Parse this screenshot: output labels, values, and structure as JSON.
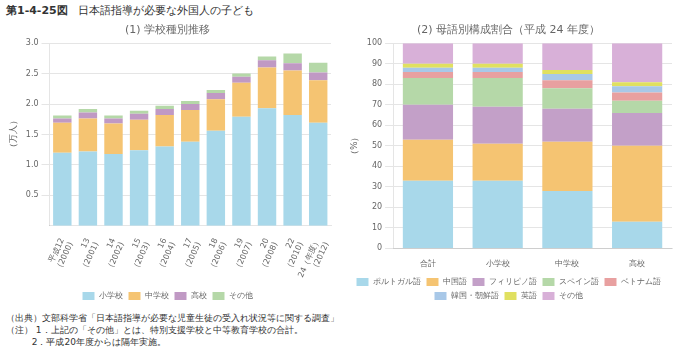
{
  "title": "日本語指導が必要な外国人の子ども",
  "annotations": [
    "第1-4-25図",
    "（出典）文部科学省「日本語指導が必要な児童生徒の受入れ状況等に関する調査」",
    "（注） 1．上記の「その他」とは、特別支援学校と中等教育学校の合計。",
    "         2．平成20年度からは隔年実施。"
  ],
  "chart_data": [
    {
      "type": "bar",
      "stacked": true,
      "title": "(1) 学校種別推移",
      "ylabel": "（万人）",
      "categories": [
        [
          "平成12",
          "(2000)"
        ],
        [
          "13",
          "(2001)"
        ],
        [
          "14",
          "(2002)"
        ],
        [
          "15",
          "(2003)"
        ],
        [
          "16",
          "(2004)"
        ],
        [
          "17",
          "(2005)"
        ],
        [
          "18",
          "(2006)"
        ],
        [
          "19",
          "(2007)"
        ],
        [
          "20",
          "(2008)"
        ],
        [
          "22",
          "(2010)"
        ],
        [
          "24（年度）",
          "(2012)"
        ]
      ],
      "series": [
        {
          "name": "小学校",
          "color": "#a8d8ea",
          "values": [
            1.2,
            1.22,
            1.18,
            1.24,
            1.3,
            1.38,
            1.56,
            1.79,
            1.93,
            1.82,
            1.69
          ]
        },
        {
          "name": "中学校",
          "color": "#f5c472",
          "values": [
            0.49,
            0.54,
            0.5,
            0.5,
            0.52,
            0.52,
            0.52,
            0.56,
            0.67,
            0.73,
            0.7
          ]
        },
        {
          "name": "高校",
          "color": "#c099c4",
          "values": [
            0.07,
            0.1,
            0.08,
            0.1,
            0.1,
            0.1,
            0.1,
            0.1,
            0.12,
            0.12,
            0.13
          ]
        },
        {
          "name": "その他",
          "color": "#b5d8a8",
          "values": [
            0.05,
            0.06,
            0.05,
            0.05,
            0.05,
            0.05,
            0.05,
            0.05,
            0.06,
            0.16,
            0.16
          ]
        }
      ],
      "ylim": [
        0,
        3.0
      ],
      "yticks": [
        0.5,
        {
          "value": 1.0,
          "label": "1.0"
        },
        1.5,
        {
          "value": 2.0,
          "label": "2.0"
        },
        2.5,
        {
          "value": 3.0,
          "label": "3.0"
        }
      ],
      "grid": true,
      "legend": "bottom"
    },
    {
      "type": "bar",
      "stacked": true,
      "title": "(2) 母語別構成割合（平成 24 年度）",
      "ylabel": "（%）",
      "categories": [
        "合計",
        "小学校",
        "中学校",
        "高校"
      ],
      "series": [
        {
          "name": "ポルトガル語",
          "color": "#a8d8ea",
          "values": [
            33,
            33,
            28,
            13
          ]
        },
        {
          "name": "中国語",
          "color": "#f5c472",
          "values": [
            20,
            18,
            24,
            37
          ]
        },
        {
          "name": "フィリピノ語",
          "color": "#c3a0c8",
          "values": [
            17,
            18,
            16,
            16
          ]
        },
        {
          "name": "スペイン語",
          "color": "#b5d8a8",
          "values": [
            13,
            14,
            10,
            6
          ]
        },
        {
          "name": "ベトナム語",
          "color": "#e8a0a0",
          "values": [
            3,
            3,
            4,
            4
          ]
        },
        {
          "name": "韓国・朝鮮語",
          "color": "#a8c8e8",
          "values": [
            2,
            2,
            3,
            3
          ]
        },
        {
          "name": "英語",
          "color": "#e0e060",
          "values": [
            2,
            2,
            2,
            2
          ]
        },
        {
          "name": "その他",
          "color": "#d8b0d8",
          "values": [
            10,
            10,
            13,
            19
          ]
        }
      ],
      "ylim": [
        0,
        100
      ],
      "yticks": [
        0,
        10,
        20,
        30,
        40,
        50,
        60,
        70,
        80,
        90,
        100
      ],
      "grid": true,
      "legend": "bottom"
    }
  ]
}
